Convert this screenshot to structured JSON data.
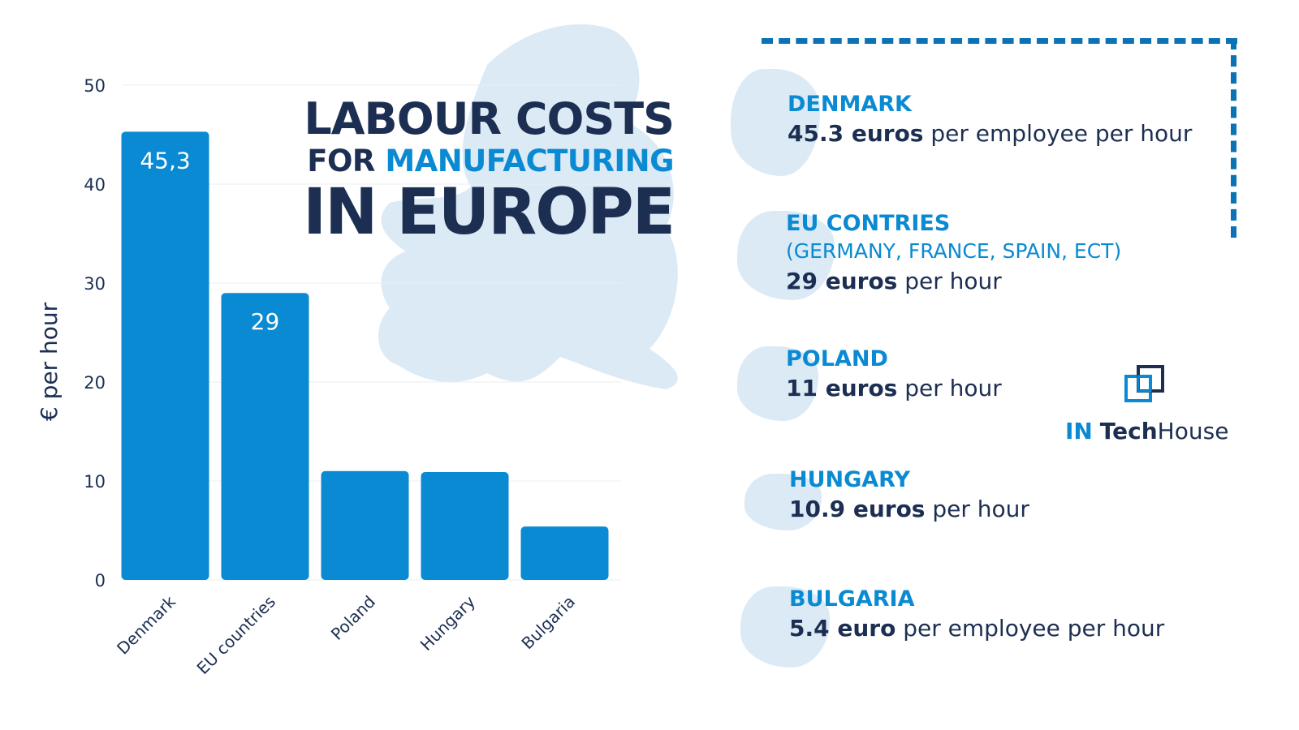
{
  "title": {
    "line1": "LABOUR COSTS",
    "line2_prefix": "FOR",
    "line2_accent": "MANUFACTURING",
    "line3": "IN EUROPE"
  },
  "colors": {
    "bar": "#0a8ad2",
    "accent": "#0a8ad2",
    "dark_text": "#1c2f52",
    "map": "#dceaf6",
    "frame": "#0b72b5"
  },
  "chart_data": {
    "type": "bar",
    "categories": [
      "Denmark",
      "EU countries",
      "Poland",
      "Hungary",
      "Bulgaria"
    ],
    "values": [
      45.3,
      29,
      11,
      10.9,
      5.4
    ],
    "data_labels": [
      "45,3",
      "29",
      "",
      "",
      ""
    ],
    "ylabel": "€ per hour",
    "ylim": [
      0,
      50
    ],
    "yticks": [
      0,
      10,
      20,
      30,
      40,
      50
    ],
    "grid": true
  },
  "info": [
    {
      "country": "DENMARK",
      "sub": "",
      "value": "45.3 euros",
      "rest": "per employee per hour"
    },
    {
      "country": "EU CONTRIES",
      "sub": "(GERMANY, FRANCE, SPAIN, ECT)",
      "value": "29 euros",
      "rest": "per hour"
    },
    {
      "country": "POLAND",
      "sub": "",
      "value": "11 euros",
      "rest": "per hour"
    },
    {
      "country": "HUNGARY",
      "sub": "",
      "value": "10.9 euros",
      "rest": "per hour"
    },
    {
      "country": "BULGARIA",
      "sub": "",
      "value": "5.4 euro",
      "rest": "per employee per hour"
    }
  ],
  "logo": {
    "in": "IN",
    "tech": "Tech",
    "house": "House",
    "icon": "overlapping-squares-icon"
  }
}
